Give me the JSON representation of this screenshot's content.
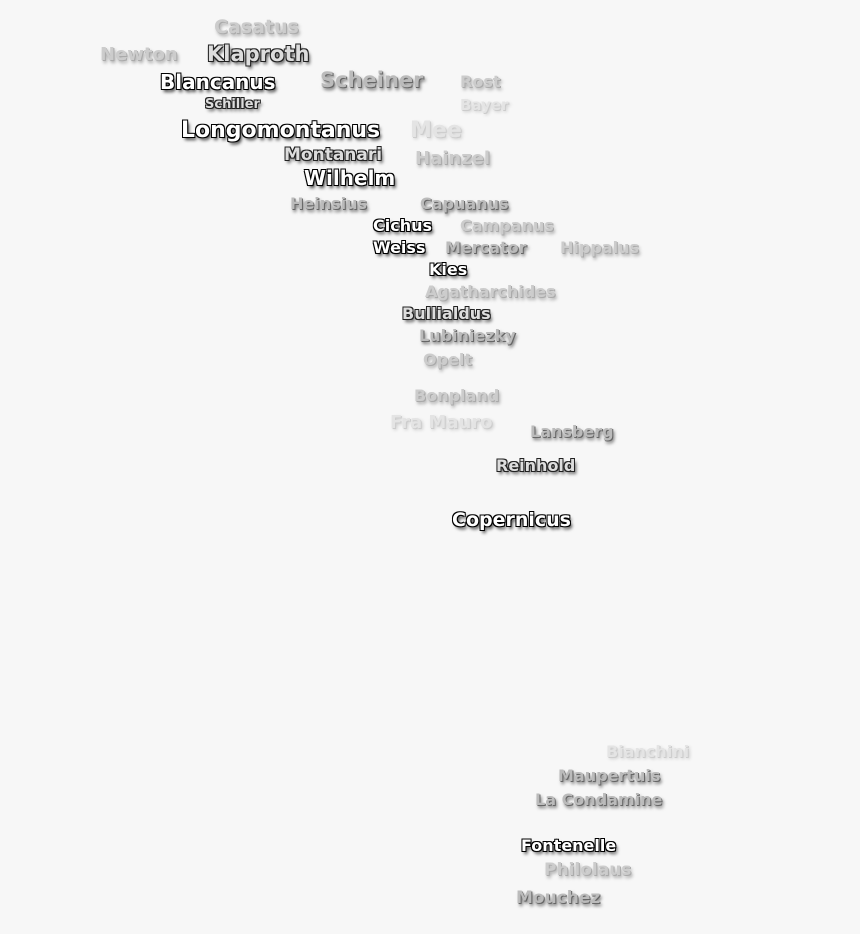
{
  "labels": [
    {
      "name": "Newton",
      "tone": 3
    },
    {
      "name": "Casatus",
      "tone": 3
    },
    {
      "name": "Klaproth",
      "tone": 1
    },
    {
      "name": "Blancanus",
      "tone": 0
    },
    {
      "name": "Scheiner",
      "tone": 2
    },
    {
      "name": "Schiller",
      "tone": 1
    },
    {
      "name": "Rost",
      "tone": 3
    },
    {
      "name": "Bayer",
      "tone": 4
    },
    {
      "name": "Longomontanus",
      "tone": 0
    },
    {
      "name": "Mee",
      "tone": 4
    },
    {
      "name": "Hainzel",
      "tone": 3
    },
    {
      "name": "Montanari",
      "tone": 1
    },
    {
      "name": "Wilhelm",
      "tone": 0
    },
    {
      "name": "Heinsius",
      "tone": 2
    },
    {
      "name": "Capuanus",
      "tone": 2
    },
    {
      "name": "Cichus",
      "tone": 0
    },
    {
      "name": "Campanus",
      "tone": 3
    },
    {
      "name": "Mercator",
      "tone": 2
    },
    {
      "name": "Weiss",
      "tone": 0
    },
    {
      "name": "Hippalus",
      "tone": 3
    },
    {
      "name": "Kies",
      "tone": 0
    },
    {
      "name": "Agatharchides",
      "tone": 3
    },
    {
      "name": "Bullialdus",
      "tone": 1
    },
    {
      "name": "Lubiniezky",
      "tone": 2
    },
    {
      "name": "Opelt",
      "tone": 3
    },
    {
      "name": "Bonpland",
      "tone": 3
    },
    {
      "name": "Fra Mauro",
      "tone": 4
    },
    {
      "name": "Lansberg",
      "tone": 2
    },
    {
      "name": "Reinhold",
      "tone": 1
    },
    {
      "name": "Copernicus",
      "tone": 0
    },
    {
      "name": "Bianchini",
      "tone": 4
    },
    {
      "name": "Maupertuis",
      "tone": 2
    },
    {
      "name": "La Condamine",
      "tone": 2
    },
    {
      "name": "Fontenelle",
      "tone": 0
    },
    {
      "name": "Philolaus",
      "tone": 3
    },
    {
      "name": "Mouchez",
      "tone": 2
    }
  ]
}
